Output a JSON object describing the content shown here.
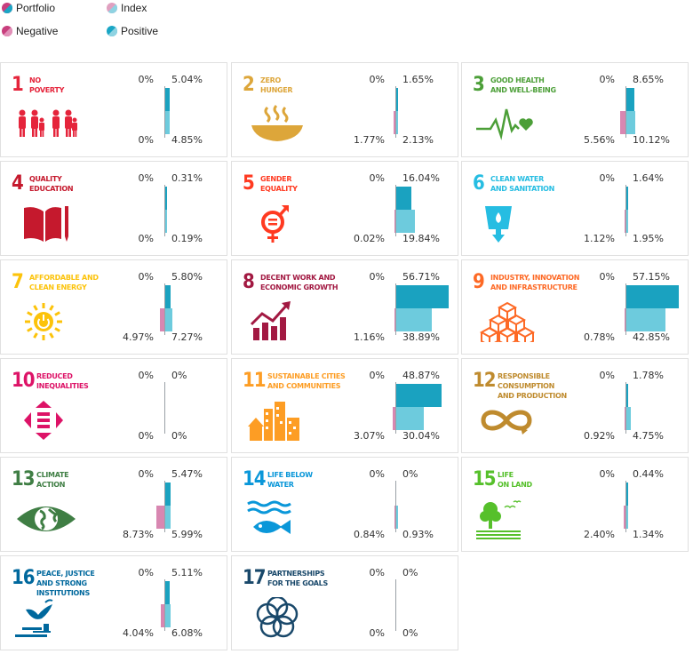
{
  "legend": {
    "items": [
      {
        "label": "Portfolio",
        "c1": "#c83e7d",
        "c2": "#1aa6c5"
      },
      {
        "label": "Index",
        "c1": "#e0a0c0",
        "c2": "#8fd3e2"
      },
      {
        "label": "Negative",
        "c1": "#c83e7d",
        "c2": "#c83e7d"
      },
      {
        "label": "Positive",
        "c1": "#1aa6c5",
        "c2": "#1aa6c5"
      }
    ]
  },
  "colors": {
    "positive_portfolio": "#1aa2c0",
    "positive_index": "#6dcbdd",
    "negative_portfolio": "#c23a7a",
    "negative_index": "#d887b1"
  },
  "chart_data": {
    "type": "bar",
    "title": "",
    "series_names": [
      "Portfolio",
      "Index"
    ],
    "goals": [
      {
        "num": "1",
        "title": "No\nPoverty",
        "color": "#e5243b",
        "icon": "family-icon",
        "portfolio": {
          "neg": "0%",
          "pos": "5.04%",
          "neg_val": 0,
          "pos_val": 5.04
        },
        "index": {
          "neg": "0%",
          "pos": "4.85%",
          "neg_val": 0,
          "pos_val": 4.85
        }
      },
      {
        "num": "2",
        "title": "Zero\nHunger",
        "color": "#dda63a",
        "icon": "bowl-icon",
        "portfolio": {
          "neg": "0%",
          "pos": "1.65%",
          "neg_val": 0,
          "pos_val": 1.65
        },
        "index": {
          "neg": "1.77%",
          "pos": "2.13%",
          "neg_val": 1.77,
          "pos_val": 2.13
        }
      },
      {
        "num": "3",
        "title": "Good Health\nand Well-Being",
        "color": "#4c9f38",
        "icon": "heartbeat-icon",
        "portfolio": {
          "neg": "0%",
          "pos": "8.65%",
          "neg_val": 0,
          "pos_val": 8.65
        },
        "index": {
          "neg": "5.56%",
          "pos": "10.12%",
          "neg_val": 5.56,
          "pos_val": 10.12
        }
      },
      {
        "num": "4",
        "title": "Quality\nEducation",
        "color": "#c5192d",
        "icon": "book-icon",
        "portfolio": {
          "neg": "0%",
          "pos": "0.31%",
          "neg_val": 0,
          "pos_val": 0.31
        },
        "index": {
          "neg": "0%",
          "pos": "0.19%",
          "neg_val": 0,
          "pos_val": 0.19
        }
      },
      {
        "num": "5",
        "title": "Gender\nEquality",
        "color": "#ff3a21",
        "icon": "gender-icon",
        "portfolio": {
          "neg": "0%",
          "pos": "16.04%",
          "neg_val": 0,
          "pos_val": 16.04
        },
        "index": {
          "neg": "0.02%",
          "pos": "19.84%",
          "neg_val": 0.02,
          "pos_val": 19.84
        }
      },
      {
        "num": "6",
        "title": "Clean Water\nand Sanitation",
        "color": "#26bde2",
        "icon": "water-glass-icon",
        "portfolio": {
          "neg": "0%",
          "pos": "1.64%",
          "neg_val": 0,
          "pos_val": 1.64
        },
        "index": {
          "neg": "1.12%",
          "pos": "1.95%",
          "neg_val": 1.12,
          "pos_val": 1.95
        }
      },
      {
        "num": "7",
        "title": "Affordable and\nClean Energy",
        "color": "#fcc30b",
        "icon": "sun-power-icon",
        "portfolio": {
          "neg": "0%",
          "pos": "5.80%",
          "neg_val": 0,
          "pos_val": 5.8
        },
        "index": {
          "neg": "4.97%",
          "pos": "7.27%",
          "neg_val": 4.97,
          "pos_val": 7.27
        }
      },
      {
        "num": "8",
        "title": "Decent Work and\nEconomic Growth",
        "color": "#a21942",
        "icon": "growth-chart-icon",
        "portfolio": {
          "neg": "0%",
          "pos": "56.71%",
          "neg_val": 0,
          "pos_val": 56.71
        },
        "index": {
          "neg": "1.16%",
          "pos": "38.89%",
          "neg_val": 1.16,
          "pos_val": 38.89
        }
      },
      {
        "num": "9",
        "title": "Industry, Innovation\nand Infrastructure",
        "color": "#fd6925",
        "icon": "cubes-icon",
        "portfolio": {
          "neg": "0%",
          "pos": "57.15%",
          "neg_val": 0,
          "pos_val": 57.15
        },
        "index": {
          "neg": "0.78%",
          "pos": "42.85%",
          "neg_val": 0.78,
          "pos_val": 42.85
        }
      },
      {
        "num": "10",
        "title": "Reduced\nInequalities",
        "color": "#dd1367",
        "icon": "equality-arrows-icon",
        "portfolio": {
          "neg": "0%",
          "pos": "0%",
          "neg_val": 0,
          "pos_val": 0
        },
        "index": {
          "neg": "0%",
          "pos": "0%",
          "neg_val": 0,
          "pos_val": 0
        }
      },
      {
        "num": "11",
        "title": "Sustainable Cities\nand Communities",
        "color": "#fd9d24",
        "icon": "city-icon",
        "portfolio": {
          "neg": "0%",
          "pos": "48.87%",
          "neg_val": 0,
          "pos_val": 48.87
        },
        "index": {
          "neg": "3.07%",
          "pos": "30.04%",
          "neg_val": 3.07,
          "pos_val": 30.04
        }
      },
      {
        "num": "12",
        "title": "Responsible\nConsumption\nand Production",
        "color": "#bf8b2e",
        "icon": "infinity-icon",
        "portfolio": {
          "neg": "0%",
          "pos": "1.78%",
          "neg_val": 0,
          "pos_val": 1.78
        },
        "index": {
          "neg": "0.92%",
          "pos": "4.75%",
          "neg_val": 0.92,
          "pos_val": 4.75
        }
      },
      {
        "num": "13",
        "title": "Climate\nAction",
        "color": "#3f7e44",
        "icon": "globe-eye-icon",
        "portfolio": {
          "neg": "0%",
          "pos": "5.47%",
          "neg_val": 0,
          "pos_val": 5.47
        },
        "index": {
          "neg": "8.73%",
          "pos": "5.99%",
          "neg_val": 8.73,
          "pos_val": 5.99
        }
      },
      {
        "num": "14",
        "title": "Life Below\nWater",
        "color": "#0a97d9",
        "icon": "fish-icon",
        "portfolio": {
          "neg": "0%",
          "pos": "0%",
          "neg_val": 0,
          "pos_val": 0
        },
        "index": {
          "neg": "0.84%",
          "pos": "0.93%",
          "neg_val": 0.84,
          "pos_val": 0.93
        }
      },
      {
        "num": "15",
        "title": "Life\non Land",
        "color": "#56c02b",
        "icon": "tree-icon",
        "portfolio": {
          "neg": "0%",
          "pos": "0.44%",
          "neg_val": 0,
          "pos_val": 0.44
        },
        "index": {
          "neg": "2.40%",
          "pos": "1.34%",
          "neg_val": 2.4,
          "pos_val": 1.34
        }
      },
      {
        "num": "16",
        "title": "Peace, Justice\nand Strong\nInstitutions",
        "color": "#00689d",
        "icon": "dove-gavel-icon",
        "portfolio": {
          "neg": "0%",
          "pos": "5.11%",
          "neg_val": 0,
          "pos_val": 5.11
        },
        "index": {
          "neg": "4.04%",
          "pos": "6.08%",
          "neg_val": 4.04,
          "pos_val": 6.08
        }
      },
      {
        "num": "17",
        "title": "Partnerships\nfor the Goals",
        "color": "#19486a",
        "icon": "rings-icon",
        "portfolio": {
          "neg": "0%",
          "pos": "0%",
          "neg_val": 0,
          "pos_val": 0
        },
        "index": {
          "neg": "0%",
          "pos": "0%",
          "neg_val": 0,
          "pos_val": 0
        }
      }
    ]
  }
}
